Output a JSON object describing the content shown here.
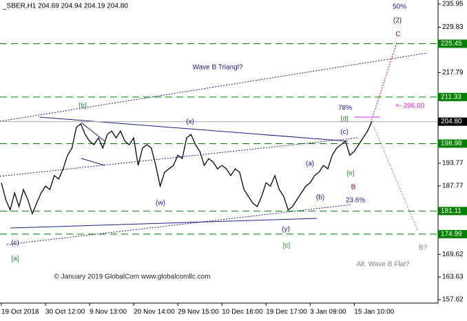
{
  "chart_data": {
    "type": "line",
    "header": "_SBER,H1  204.69 204.94 204.19 204.80",
    "series": [
      {
        "name": "SBER H1",
        "color": "#000000",
        "x": [
          0,
          1,
          2,
          3,
          4,
          5,
          6,
          7,
          8,
          9,
          10,
          11,
          12,
          13,
          14,
          15,
          16,
          17,
          18,
          19,
          20,
          21,
          22,
          23,
          24,
          25,
          26,
          27,
          28,
          29,
          30,
          31,
          32,
          33,
          34,
          35,
          36,
          37,
          38,
          39,
          40,
          41,
          42,
          43,
          44,
          45,
          46,
          47,
          48,
          49,
          50,
          51,
          52,
          53,
          54,
          55,
          56,
          57,
          58,
          59,
          60,
          61,
          62,
          63,
          64,
          65,
          66,
          67,
          68,
          69,
          70,
          71,
          72,
          73,
          74,
          75,
          76,
          77,
          78,
          79,
          80,
          81,
          82,
          83,
          84
        ],
        "values": [
          188.6,
          184.1,
          181.4,
          185.9,
          182.3,
          186.8,
          184.1,
          180.4,
          183.2,
          185.9,
          187.7,
          186.8,
          190.5,
          189.6,
          192.3,
          195.9,
          197.8,
          203.3,
          204.2,
          201.4,
          199.6,
          198.7,
          200.5,
          197.8,
          201.4,
          202.3,
          200.5,
          202.3,
          199.6,
          198.7,
          200.5,
          193.2,
          197.8,
          198.7,
          197.8,
          193.2,
          187.7,
          191.4,
          192.3,
          193.2,
          195.9,
          195.0,
          200.5,
          201.4,
          198.7,
          196.9,
          193.2,
          195.0,
          194.1,
          192.3,
          193.2,
          192.3,
          190.5,
          192.3,
          191.4,
          186.8,
          185.0,
          183.2,
          182.3,
          185.0,
          188.6,
          187.7,
          190.5,
          186.8,
          185.0,
          181.4,
          182.3,
          184.1,
          185.9,
          187.7,
          188.6,
          190.5,
          191.4,
          193.2,
          192.3,
          195.9,
          197.8,
          198.7,
          199.6,
          195.9,
          196.9,
          198.7,
          200.5,
          202.3,
          204.8
        ]
      }
    ],
    "xlim": [
      0,
      99
    ],
    "ylim": [
      157.62,
      235.95
    ],
    "xticks": [
      {
        "value": 0,
        "label": "19 Oct 2018"
      },
      {
        "value": 10,
        "label": "30 Oct 12:00"
      },
      {
        "value": 20,
        "label": "9 Nov 13:00"
      },
      {
        "value": 30,
        "label": "20 Nov 14:00"
      },
      {
        "value": 40,
        "label": "29 Nov 15:00"
      },
      {
        "value": 50,
        "label": "10 Dec 16:00"
      },
      {
        "value": 60,
        "label": "19 Dec 17:00"
      },
      {
        "value": 70,
        "label": "3 Jan 09:00"
      },
      {
        "value": 80,
        "label": "15 Jan 10:00"
      }
    ],
    "yticks": [
      235.95,
      229.83,
      217.79,
      193.77,
      187.77,
      169.62,
      163.63,
      157.62
    ],
    "levels": [
      {
        "value": 225.45,
        "color": "#008000"
      },
      {
        "value": 211.33,
        "color": "#008000"
      },
      {
        "value": 198.98,
        "color": "#008000"
      },
      {
        "value": 181.11,
        "color": "#008000"
      },
      {
        "value": 174.99,
        "color": "#008000"
      },
      {
        "value": {
          "value": 204.8,
          "label": "204.80"
        },
        "color": "#000000"
      }
    ],
    "annotations": [
      {
        "text": "50%",
        "color": "#1a1a8c"
      },
      {
        "text": "(2)",
        "color": "#1a1a5c"
      },
      {
        "text": "C",
        "color": "#b00000"
      },
      {
        "text": "Wave B Triangl?",
        "color": "#1a1a8c"
      },
      {
        "text": "[b]",
        "color": "#2e8b2e"
      },
      {
        "text": "(x)",
        "color": "#1a1a8c"
      },
      {
        "text": "78%",
        "color": "#1a1a8c"
      },
      {
        "text": "+- 206.00",
        "color": "#e020e0"
      },
      {
        "text": "[d]",
        "color": "#2e8b2e"
      },
      {
        "text": "(c)",
        "color": "#1a1a8c"
      },
      {
        "text": "(a)",
        "color": "#1a1a8c"
      },
      {
        "text": "[e]",
        "color": "#2e8b2e"
      },
      {
        "text": "B",
        "color": "#8b0000"
      },
      {
        "text": "(w)",
        "color": "#1a1a8c"
      },
      {
        "text": "(b)",
        "color": "#1a1a8c"
      },
      {
        "text": "23.6%",
        "color": "#1a1a8c"
      },
      {
        "text": "(y)",
        "color": "#1a1a8c"
      },
      {
        "text": "[c]",
        "color": "#2e8b2e"
      },
      {
        "text": "(c)",
        "color": "#1a1a8c"
      },
      {
        "text": "[a]",
        "color": "#2e8b2e"
      },
      {
        "text": "B?",
        "color": "#808080"
      },
      {
        "text": "Alt. Wave B Flat?",
        "color": "#808080"
      },
      {
        "text": "© January 2019 GlobalCom www.globalcomllc.com",
        "color": "#222222"
      }
    ]
  }
}
